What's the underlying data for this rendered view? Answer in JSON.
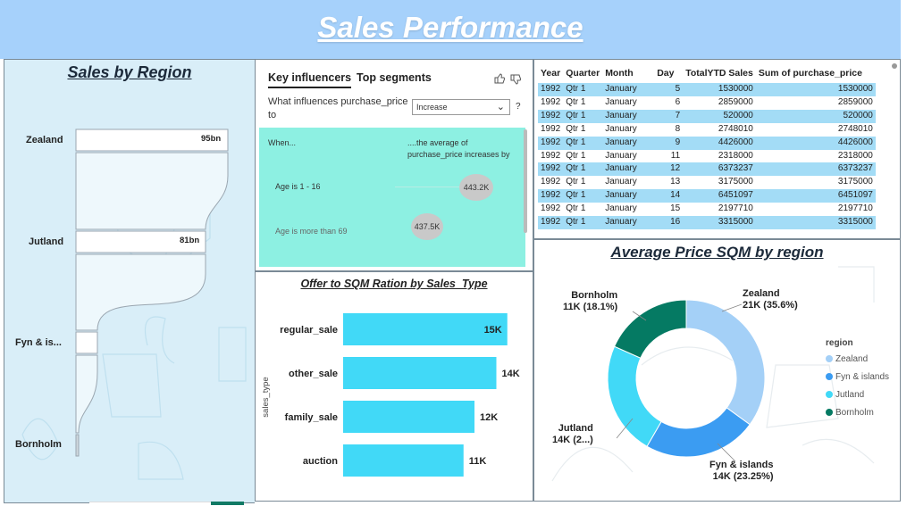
{
  "header": {
    "title": "Sales Performance"
  },
  "sales_by_region": {
    "title": "Sales by Region",
    "regions": [
      {
        "name": "Zealand",
        "value_label": "95bn"
      },
      {
        "name": "Jutland",
        "value_label": "81bn"
      },
      {
        "name": "Fyn & is...",
        "value_label": ""
      },
      {
        "name": "Bornholm",
        "value_label": ""
      }
    ]
  },
  "key_influencers": {
    "tab_active": "Key influencers",
    "tab_other": "Top segments",
    "question": "What influences purchase_price to",
    "dropdown_value": "Increase",
    "help": "?",
    "when_label": "When...",
    "effect_label": "....the average of purchase_price increases by",
    "items": [
      {
        "condition": "Age is 1 - 16",
        "value": "443.2K"
      },
      {
        "condition": "Age is more than 69",
        "value": "437.5K"
      }
    ]
  },
  "offer_chart": {
    "title": "Offer to SQM Ration by Sales_Type",
    "y_axis_label": "sales_type"
  },
  "table": {
    "columns": [
      "Year",
      "Quarter",
      "Month",
      "Day",
      "TotalYTD Sales",
      "Sum of purchase_price"
    ],
    "rows": [
      [
        "1992",
        "Qtr 1",
        "January",
        "5",
        "1530000",
        "1530000"
      ],
      [
        "1992",
        "Qtr 1",
        "January",
        "6",
        "2859000",
        "2859000"
      ],
      [
        "1992",
        "Qtr 1",
        "January",
        "7",
        "520000",
        "520000"
      ],
      [
        "1992",
        "Qtr 1",
        "January",
        "8",
        "2748010",
        "2748010"
      ],
      [
        "1992",
        "Qtr 1",
        "January",
        "9",
        "4426000",
        "4426000"
      ],
      [
        "1992",
        "Qtr 1",
        "January",
        "11",
        "2318000",
        "2318000"
      ],
      [
        "1992",
        "Qtr 1",
        "January",
        "12",
        "6373237",
        "6373237"
      ],
      [
        "1992",
        "Qtr 1",
        "January",
        "13",
        "3175000",
        "3175000"
      ],
      [
        "1992",
        "Qtr 1",
        "January",
        "14",
        "6451097",
        "6451097"
      ],
      [
        "1992",
        "Qtr 1",
        "January",
        "15",
        "2197710",
        "2197710"
      ],
      [
        "1992",
        "Qtr 1",
        "January",
        "16",
        "3315000",
        "3315000"
      ]
    ]
  },
  "avg_price": {
    "title": "Average Price SQM by region",
    "legend_title": "region",
    "labels": [
      {
        "line1": "Zealand",
        "line2": "21K (35.6%)"
      },
      {
        "line1": "Fyn & islands",
        "line2": "14K (23.25%)"
      },
      {
        "line1": "Jutland",
        "line2": "14K (2...)"
      },
      {
        "line1": "Bornholm",
        "line2": "11K (18.1%)"
      }
    ]
  },
  "chart_data": [
    {
      "type": "bar",
      "title": "Offer to SQM Ration by Sales_Type",
      "ylabel": "sales_type",
      "categories": [
        "regular_sale",
        "other_sale",
        "family_sale",
        "auction"
      ],
      "values": [
        15,
        14,
        12,
        11
      ],
      "value_labels": [
        "15K",
        "14K",
        "12K",
        "11K"
      ],
      "unit": "K",
      "color": "#41d9f7",
      "xlim": [
        0,
        16
      ]
    },
    {
      "type": "pie",
      "title": "Average Price SQM by region",
      "categories": [
        "Zealand",
        "Fyn & islands",
        "Jutland",
        "Bornholm"
      ],
      "values": [
        21,
        14,
        14,
        11
      ],
      "percents": [
        35.6,
        23.25,
        23.05,
        18.1
      ],
      "colors": [
        "#a4d0f7",
        "#3b9cf2",
        "#41d9f7",
        "#057a63"
      ],
      "legend": "right"
    }
  ],
  "colors": {
    "header_bg": "#a6d1fb",
    "table_alt": "#a3dcf6",
    "influencer_bg": "#8df0e2"
  }
}
